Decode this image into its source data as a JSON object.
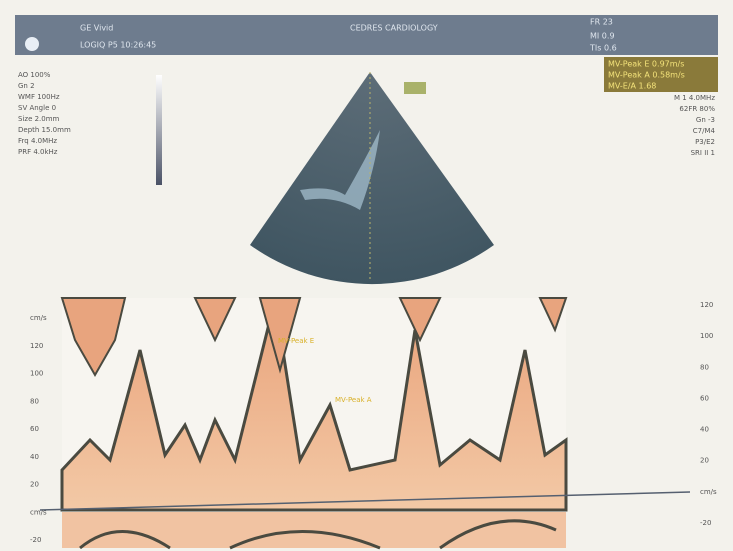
{
  "header": {
    "left_line1": "GE Vivid",
    "left_line2": "LOGIQ P5 10:26:45",
    "center": "CEDRES CARDIOLOGY",
    "right": [
      "FR 23",
      "MI 0.9",
      "TIs 0.6"
    ]
  },
  "measurements": [
    "MV-Peak E 0.97m/s",
    "MV-Peak A 0.58m/s",
    "MV-E/A 1.68"
  ],
  "left_params": [
    "AO 100%",
    "Gn 2",
    "WMF 100Hz",
    "SV Angle 0",
    "Size 2.0mm",
    "Depth 15.0mm",
    "Frq 4.0MHz",
    "PRF 4.0kHz"
  ],
  "right_params": [
    "M 1 4.0MHz",
    "62FR 80%",
    "Gn -3",
    "C7/M4",
    "P3/E2",
    "SRI II 1"
  ],
  "doppler_labels": [
    "MV-Peak E",
    "MV-Peak A"
  ],
  "left_scale": [
    "cm/s",
    "120",
    "100",
    "80",
    "60",
    "40",
    "20",
    "cm/s",
    "-20"
  ],
  "right_scale": [
    "120",
    "100",
    "80",
    "60",
    "40",
    "20",
    "cm/s",
    "-20"
  ]
}
